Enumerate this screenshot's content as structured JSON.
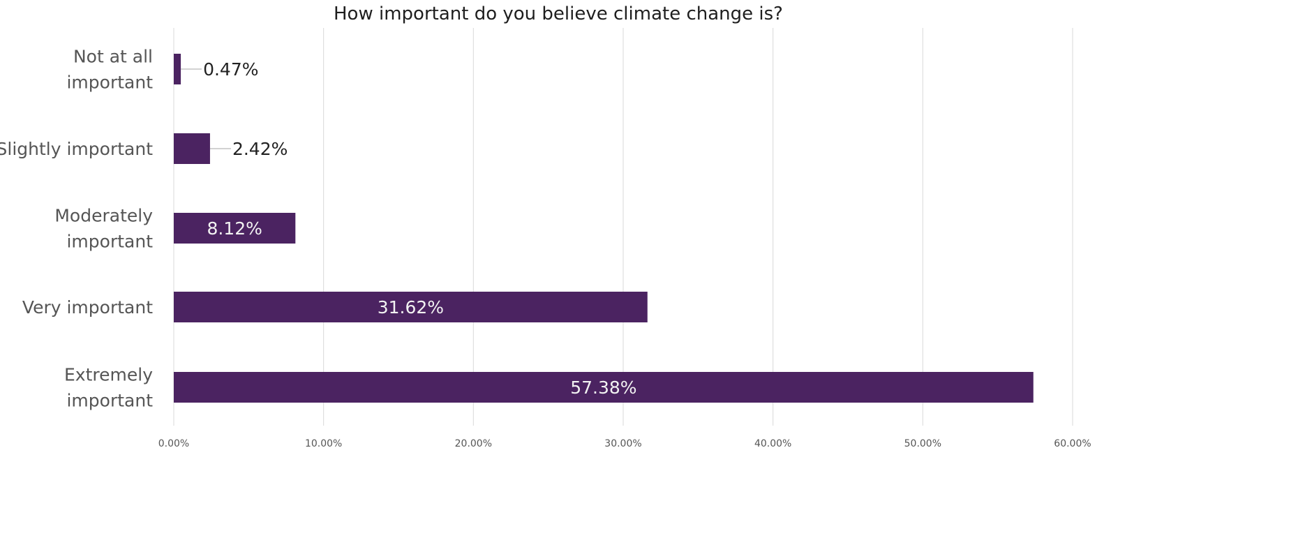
{
  "chart_data": {
    "type": "bar",
    "orientation": "horizontal",
    "title": "How important do you believe climate change is?",
    "xlabel": "",
    "ylabel": "",
    "categories": [
      [
        "Not at all",
        "important"
      ],
      [
        "Slightly important"
      ],
      [
        "Moderately",
        "important"
      ],
      [
        "Very important"
      ],
      [
        "Extremely",
        "important"
      ]
    ],
    "values": [
      0.47,
      2.42,
      8.12,
      31.62,
      57.38
    ],
    "data_labels": [
      "0.47%",
      "2.42%",
      "8.12%",
      "31.62%",
      "57.38%"
    ],
    "xlim": [
      0,
      60
    ],
    "x_ticks": [
      0,
      10,
      20,
      30,
      40,
      50,
      60
    ],
    "x_tick_labels": [
      "0.00%",
      "10.00%",
      "20.00%",
      "30.00%",
      "40.00%",
      "50.00%",
      "60.00%"
    ],
    "grid": "vertical",
    "legend": "none",
    "bar_color": "#4b2361",
    "grid_color": "#d9d9d9"
  }
}
